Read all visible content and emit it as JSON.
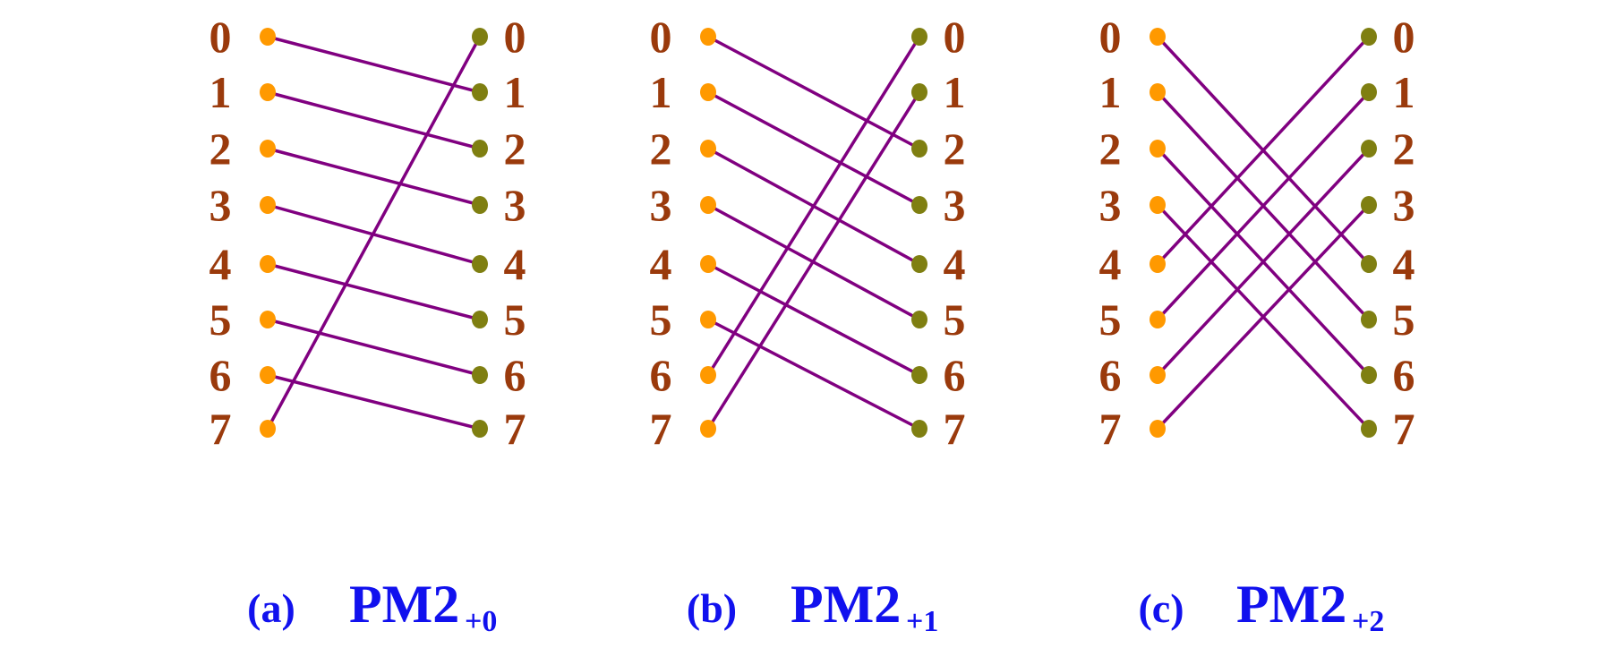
{
  "colors": {
    "source_dot": "#ff9900",
    "dest_dot": "#7f7f11",
    "wire": "#800080",
    "number": "#9a3a0c",
    "caption": "#1111ee"
  },
  "nodes": [
    "0",
    "1",
    "2",
    "3",
    "4",
    "5",
    "6",
    "7"
  ],
  "panels": [
    {
      "id": "a",
      "letter": "(a)",
      "label": "PM2",
      "subscript": "+0",
      "mapping": [
        1,
        2,
        3,
        4,
        5,
        6,
        7,
        0
      ]
    },
    {
      "id": "b",
      "letter": "(b)",
      "label": "PM2",
      "subscript": "+1",
      "mapping": [
        2,
        3,
        4,
        5,
        6,
        7,
        0,
        1
      ]
    },
    {
      "id": "c",
      "letter": "(c)",
      "label": "PM2",
      "subscript": "+2",
      "mapping": [
        4,
        5,
        6,
        7,
        0,
        1,
        2,
        3
      ]
    }
  ]
}
